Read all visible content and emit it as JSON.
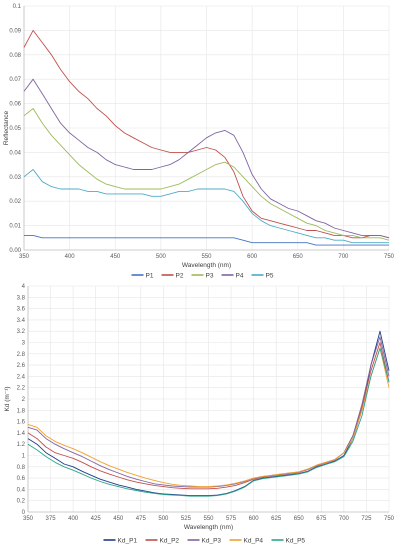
{
  "chart_data": [
    {
      "type": "line",
      "xlabel": "Wavelength  (nm)",
      "ylabel": "Reflectance",
      "xlim": [
        350,
        750
      ],
      "ylim": [
        0,
        0.1
      ],
      "xticks": [
        "350",
        "400",
        "450",
        "500",
        "550",
        "600",
        "650",
        "700",
        "750"
      ],
      "yticks": [
        "0.00",
        "0.01",
        "0.02",
        "0.03",
        "0.04",
        "0.05",
        "0.06",
        "0.07",
        "0.08",
        "0.09",
        "0.1"
      ],
      "x": [
        350,
        360,
        370,
        380,
        390,
        400,
        410,
        420,
        430,
        440,
        450,
        460,
        470,
        480,
        490,
        500,
        510,
        520,
        530,
        540,
        550,
        560,
        570,
        580,
        590,
        600,
        610,
        620,
        630,
        640,
        650,
        660,
        670,
        680,
        690,
        700,
        710,
        720,
        730,
        740,
        750
      ],
      "grid": true,
      "legend": "bottom",
      "series": [
        {
          "name": "P1",
          "color": "#4472c4",
          "values": [
            0.006,
            0.006,
            0.005,
            0.005,
            0.005,
            0.005,
            0.005,
            0.005,
            0.005,
            0.005,
            0.005,
            0.005,
            0.005,
            0.005,
            0.005,
            0.005,
            0.005,
            0.005,
            0.005,
            0.005,
            0.005,
            0.005,
            0.005,
            0.005,
            0.004,
            0.003,
            0.003,
            0.003,
            0.003,
            0.003,
            0.003,
            0.003,
            0.002,
            0.002,
            0.002,
            0.002,
            0.002,
            0.002,
            0.002,
            0.002,
            0.002
          ]
        },
        {
          "name": "P2",
          "color": "#c0504d",
          "values": [
            0.083,
            0.09,
            0.085,
            0.08,
            0.074,
            0.069,
            0.065,
            0.062,
            0.058,
            0.055,
            0.051,
            0.048,
            0.046,
            0.044,
            0.042,
            0.041,
            0.04,
            0.04,
            0.04,
            0.041,
            0.042,
            0.041,
            0.038,
            0.032,
            0.022,
            0.016,
            0.013,
            0.012,
            0.011,
            0.01,
            0.009,
            0.008,
            0.008,
            0.007,
            0.006,
            0.006,
            0.005,
            0.005,
            0.006,
            0.006,
            0.005
          ]
        },
        {
          "name": "P3",
          "color": "#9bbb59",
          "values": [
            0.055,
            0.058,
            0.052,
            0.047,
            0.043,
            0.039,
            0.035,
            0.032,
            0.029,
            0.027,
            0.026,
            0.025,
            0.025,
            0.025,
            0.025,
            0.025,
            0.026,
            0.027,
            0.029,
            0.031,
            0.033,
            0.035,
            0.036,
            0.034,
            0.03,
            0.026,
            0.022,
            0.019,
            0.017,
            0.015,
            0.013,
            0.011,
            0.01,
            0.008,
            0.007,
            0.006,
            0.006,
            0.005,
            0.005,
            0.005,
            0.004
          ]
        },
        {
          "name": "P4",
          "color": "#8064a2",
          "values": [
            0.065,
            0.07,
            0.064,
            0.058,
            0.052,
            0.048,
            0.045,
            0.042,
            0.04,
            0.037,
            0.035,
            0.034,
            0.033,
            0.033,
            0.033,
            0.034,
            0.035,
            0.037,
            0.04,
            0.043,
            0.046,
            0.048,
            0.049,
            0.047,
            0.04,
            0.031,
            0.025,
            0.021,
            0.019,
            0.017,
            0.016,
            0.014,
            0.012,
            0.011,
            0.009,
            0.008,
            0.007,
            0.006,
            0.006,
            0.006,
            0.005
          ]
        },
        {
          "name": "P5",
          "color": "#4bacc6",
          "values": [
            0.03,
            0.033,
            0.028,
            0.026,
            0.025,
            0.025,
            0.025,
            0.024,
            0.024,
            0.023,
            0.023,
            0.023,
            0.023,
            0.023,
            0.022,
            0.022,
            0.023,
            0.024,
            0.024,
            0.025,
            0.025,
            0.025,
            0.025,
            0.024,
            0.02,
            0.015,
            0.012,
            0.01,
            0.009,
            0.008,
            0.007,
            0.006,
            0.005,
            0.005,
            0.004,
            0.004,
            0.003,
            0.003,
            0.003,
            0.003,
            0.003
          ]
        }
      ]
    },
    {
      "type": "line",
      "xlabel": "Wavelength (nm)",
      "ylabel": "Kd (m⁻¹)",
      "xlim": [
        350,
        750
      ],
      "ylim": [
        0,
        4
      ],
      "xticks": [
        "350",
        "375",
        "400",
        "425",
        "450",
        "475",
        "500",
        "525",
        "550",
        "575",
        "600",
        "625",
        "650",
        "675",
        "700",
        "725",
        "750"
      ],
      "yticks": [
        "0",
        "0.2",
        "0.4",
        "0.6",
        "0.8",
        "1",
        "1.2",
        "1.4",
        "1.6",
        "1.8",
        "2",
        "2.2",
        "2.4",
        "2.6",
        "2.8",
        "3",
        "3.2",
        "3.4",
        "3.6",
        "3.8",
        "4"
      ],
      "x": [
        350,
        360,
        370,
        380,
        390,
        400,
        410,
        420,
        430,
        440,
        450,
        460,
        470,
        480,
        490,
        500,
        510,
        520,
        530,
        540,
        550,
        560,
        570,
        580,
        590,
        600,
        610,
        620,
        630,
        640,
        650,
        660,
        670,
        680,
        690,
        700,
        710,
        720,
        730,
        740,
        750
      ],
      "grid": true,
      "legend": "bottom",
      "series": [
        {
          "name": "Kd_P1",
          "color": "#1f3c88",
          "values": [
            1.3,
            1.2,
            1.05,
            0.95,
            0.85,
            0.8,
            0.72,
            0.65,
            0.58,
            0.53,
            0.48,
            0.44,
            0.4,
            0.37,
            0.34,
            0.32,
            0.31,
            0.3,
            0.29,
            0.29,
            0.29,
            0.3,
            0.33,
            0.38,
            0.45,
            0.56,
            0.6,
            0.62,
            0.64,
            0.66,
            0.68,
            0.72,
            0.8,
            0.85,
            0.9,
            1.0,
            1.3,
            1.8,
            2.6,
            3.2,
            2.5
          ]
        },
        {
          "name": "Kd_P2",
          "color": "#c0504d",
          "values": [
            1.4,
            1.3,
            1.15,
            1.05,
            1.0,
            0.95,
            0.88,
            0.8,
            0.73,
            0.67,
            0.62,
            0.57,
            0.53,
            0.5,
            0.47,
            0.45,
            0.43,
            0.42,
            0.41,
            0.41,
            0.41,
            0.42,
            0.44,
            0.47,
            0.52,
            0.58,
            0.62,
            0.64,
            0.66,
            0.68,
            0.7,
            0.75,
            0.82,
            0.87,
            0.92,
            1.05,
            1.35,
            1.85,
            2.5,
            3.0,
            2.3
          ]
        },
        {
          "name": "Kd_P3",
          "color": "#8064a2",
          "values": [
            1.5,
            1.45,
            1.3,
            1.2,
            1.12,
            1.05,
            0.98,
            0.9,
            0.82,
            0.75,
            0.69,
            0.63,
            0.58,
            0.54,
            0.5,
            0.48,
            0.46,
            0.45,
            0.44,
            0.44,
            0.44,
            0.45,
            0.47,
            0.5,
            0.54,
            0.6,
            0.63,
            0.65,
            0.67,
            0.69,
            0.71,
            0.76,
            0.83,
            0.88,
            0.93,
            1.05,
            1.35,
            1.9,
            2.6,
            3.1,
            2.4
          ]
        },
        {
          "name": "Kd_P4",
          "color": "#f0a030",
          "values": [
            1.55,
            1.5,
            1.35,
            1.25,
            1.18,
            1.12,
            1.05,
            0.97,
            0.89,
            0.82,
            0.76,
            0.7,
            0.65,
            0.6,
            0.56,
            0.52,
            0.49,
            0.47,
            0.46,
            0.45,
            0.45,
            0.46,
            0.48,
            0.51,
            0.55,
            0.6,
            0.63,
            0.65,
            0.67,
            0.69,
            0.71,
            0.76,
            0.83,
            0.88,
            0.93,
            1.05,
            1.3,
            1.8,
            2.4,
            2.9,
            2.2
          ]
        },
        {
          "name": "Kd_P5",
          "color": "#2ca58d",
          "values": [
            1.2,
            1.1,
            0.98,
            0.88,
            0.8,
            0.74,
            0.67,
            0.6,
            0.54,
            0.49,
            0.45,
            0.41,
            0.38,
            0.35,
            0.33,
            0.31,
            0.3,
            0.29,
            0.28,
            0.28,
            0.28,
            0.29,
            0.32,
            0.37,
            0.44,
            0.55,
            0.59,
            0.61,
            0.63,
            0.65,
            0.67,
            0.71,
            0.79,
            0.84,
            0.89,
            0.98,
            1.25,
            1.7,
            2.4,
            2.9,
            2.3
          ]
        }
      ]
    }
  ]
}
